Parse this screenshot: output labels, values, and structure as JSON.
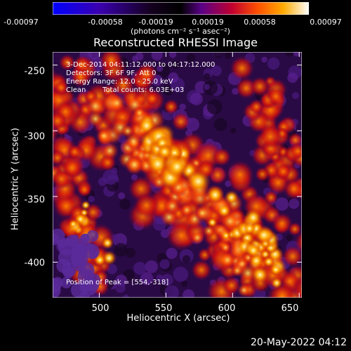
{
  "colorbar": {
    "units": "(photons cm⁻² s⁻¹ asec⁻²)",
    "tick_labels": [
      "-0.00097",
      "-0.00058",
      "-0.00019",
      "0.00019",
      "0.00058",
      "0.00097"
    ],
    "range": [
      -0.00097,
      0.00097
    ],
    "colors": [
      "#0000ff",
      "#4b0082",
      "#000000",
      "#550099",
      "#aa0033",
      "#ff4400",
      "#ff9900",
      "#ffff66",
      "#ffffff"
    ]
  },
  "chart_data": {
    "type": "heatmap",
    "title": "Reconstructed RHESSI Image",
    "xlabel": "Heliocentric X (arcsec)",
    "ylabel": "Heliocentric Y (arcsec)",
    "xlim": [
      465,
      652
    ],
    "ylim": [
      -427,
      -240
    ],
    "x_ticks": [
      500,
      550,
      600,
      650
    ],
    "y_ticks": [
      -250,
      -300,
      -350,
      -400
    ],
    "peak_position": [
      554,
      -318
    ],
    "annotations": [
      "3-Dec-2014 04:11:12.000 to 04:17:12.000",
      "Detectors: 3F 6F 9F, Att 0",
      "Energy Range: 12.0 - 25.0 keV",
      "Clean",
      "Total counts: 6.03E+03",
      "Position of Peak = [554,-318]"
    ]
  },
  "footer": {
    "timestamp": "20-May-2022 04:12"
  }
}
